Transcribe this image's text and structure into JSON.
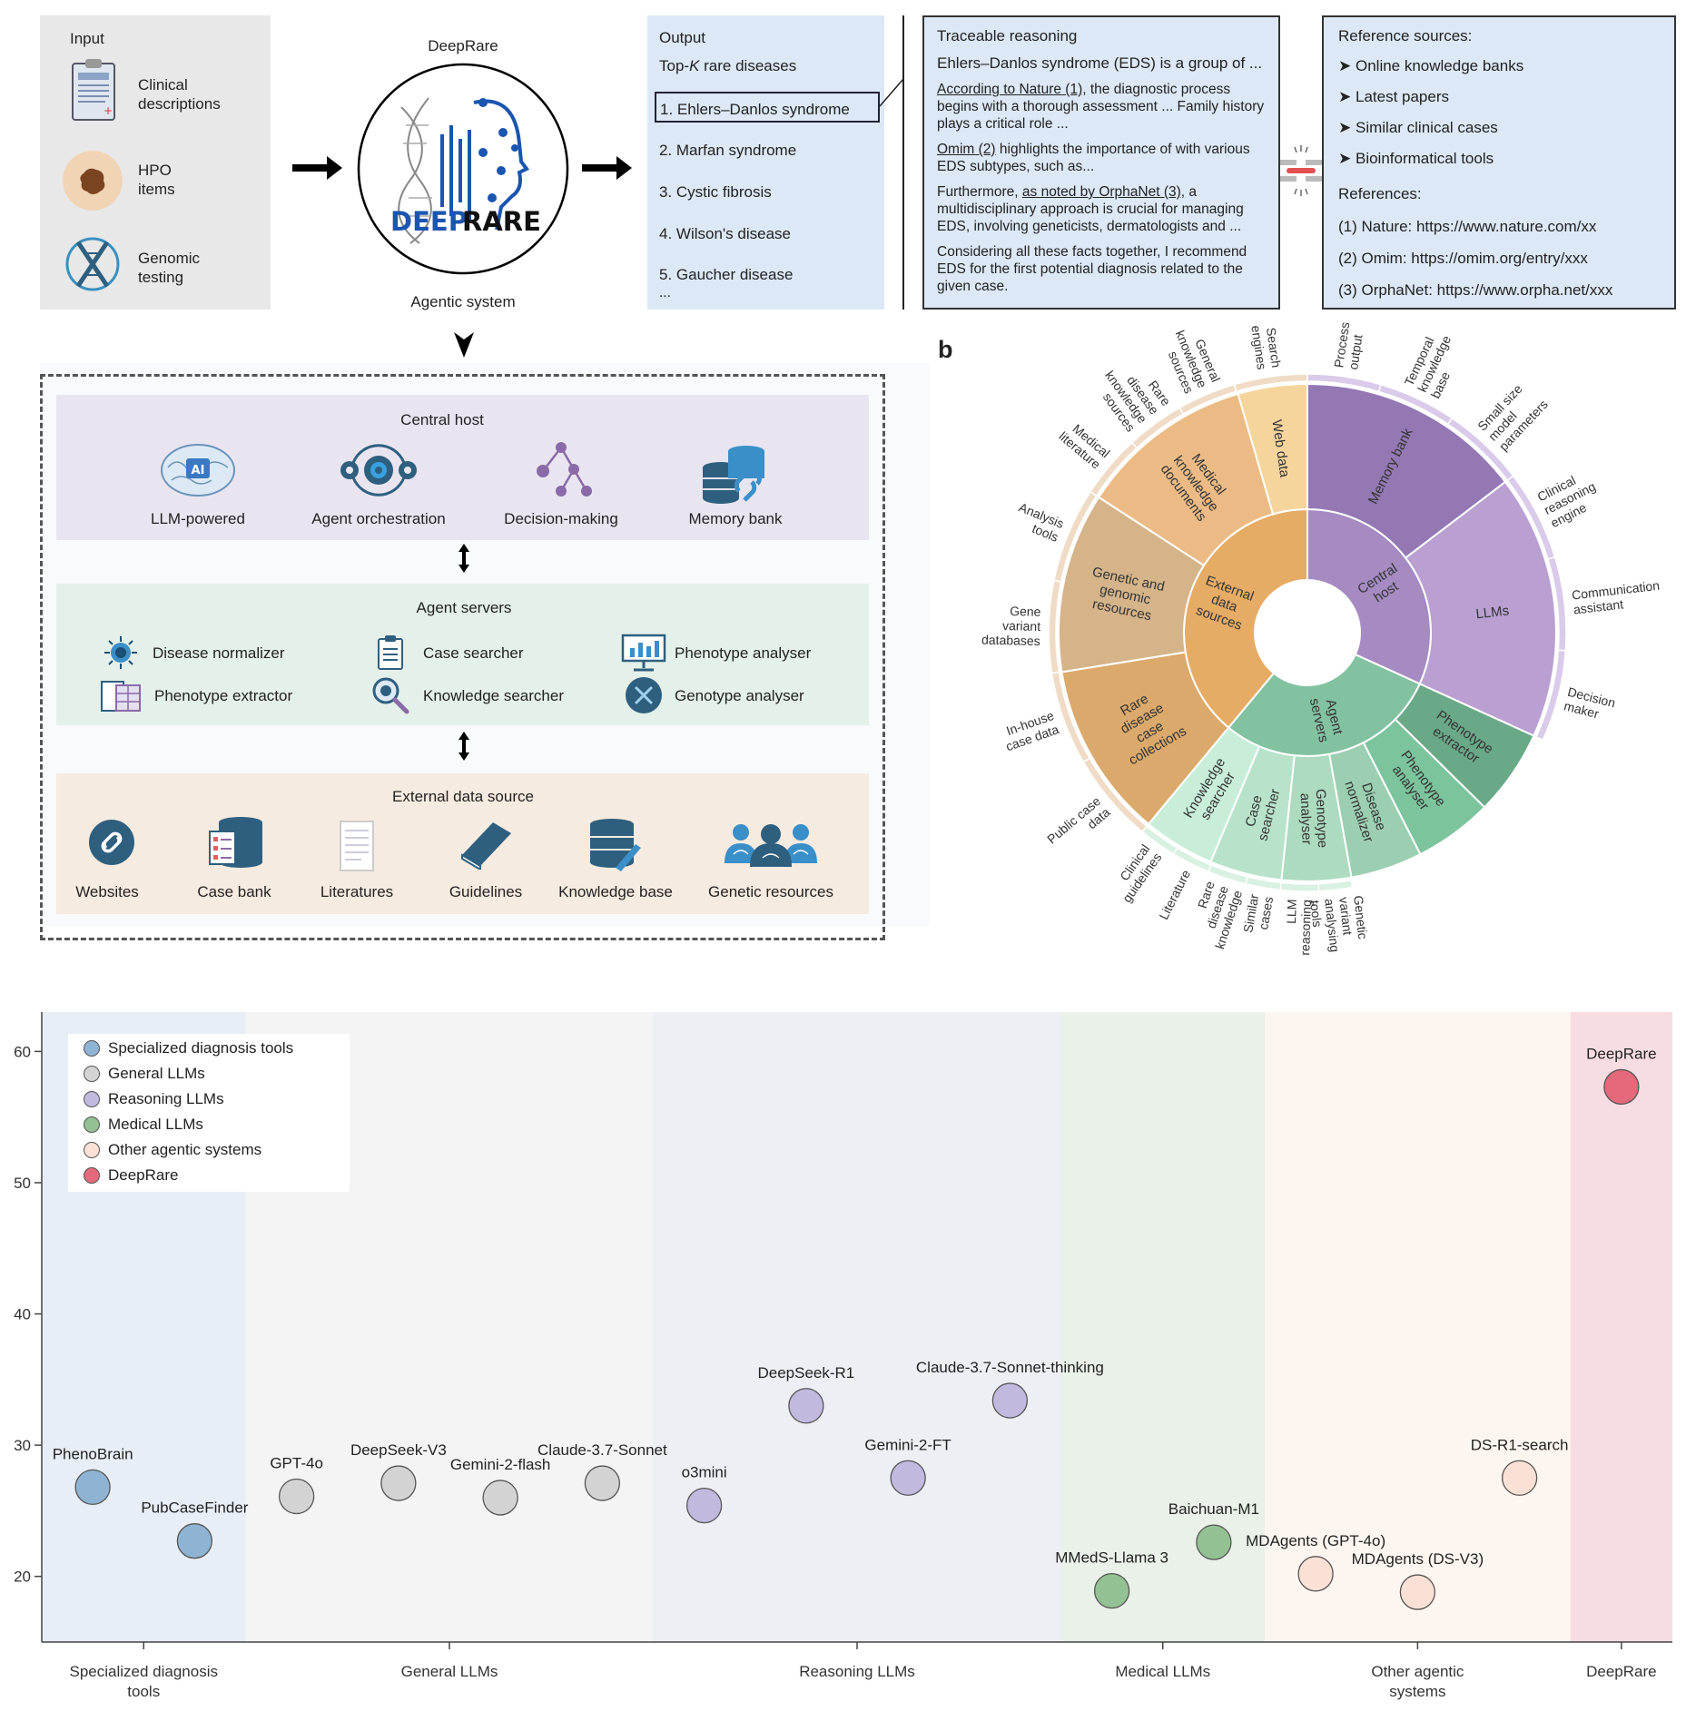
{
  "panel_a": {
    "input": {
      "title": "Input",
      "items": [
        {
          "label_1": "Clinical",
          "label_2": "descriptions",
          "icon": "clipboard-icon"
        },
        {
          "label_1": "HPO",
          "label_2": "items",
          "icon": "skin-lesion-icon"
        },
        {
          "label_1": "Genomic",
          "label_2": "testing",
          "icon": "dna-icon"
        }
      ]
    },
    "agent": {
      "title": "DeepRare",
      "logo_text_1": "DEEP",
      "logo_text_2": "RARE",
      "subtitle": "Agentic system"
    },
    "output": {
      "title": "Output",
      "subtitle_prefix": "Top-",
      "subtitle_k": "K",
      "subtitle_suffix": " rare diseases",
      "items": [
        "1. Ehlers–Danlos syndrome",
        "2. Marfan syndrome",
        "3. Cystic fibrosis",
        "4. Wilson's disease",
        "5. Gaucher disease"
      ],
      "ellipsis": "..."
    },
    "reasoning": {
      "title": "Traceable reasoning",
      "intro": "Ehlers–Danlos syndrome (EDS) is a group of ...",
      "p1_link": "According to Nature (1),",
      "p1_rest": " the diagnostic process begins with a thorough assessment ... Family history plays a critical role ...",
      "p2_link": "Omim (2)",
      "p2_rest": " highlights the importance of with various EDS subtypes, such as...",
      "p3_pre": "Furthermore, ",
      "p3_link": "as noted by OrphaNet (3),",
      "p3_rest": " a multidisciplinary approach is crucial for managing EDS, involving geneticists, dermatologists and ...",
      "p4": "Considering all these facts together, I recommend EDS for the first potential diagnosis related to the given case."
    },
    "references": {
      "title": "Reference sources:",
      "sources": [
        "Online knowledge banks",
        "Latest papers",
        "Similar clinical cases",
        "Bioinformatical tools"
      ],
      "refs_title": "References:",
      "refs": [
        "(1) Nature: https://www.nature.com/xx",
        "(2) Omim: https://omim.org/entry/xxx",
        "(3) OrphaNet: https://www.orpha.net/xxx"
      ]
    },
    "architecture": {
      "central_host": {
        "title": "Central host",
        "items": [
          "LLM-powered",
          "Agent orchestration",
          "Decision-making",
          "Memory bank"
        ],
        "ai_badge": "AI"
      },
      "agent_servers": {
        "title": "Agent servers",
        "items": [
          "Disease normalizer",
          "Case searcher",
          "Phenotype analyser",
          "Phenotype extractor",
          "Knowledge searcher",
          "Genotype analyser"
        ]
      },
      "external": {
        "title": "External data source",
        "items": [
          "Websites",
          "Case bank",
          "Literatures",
          "Guidelines",
          "Knowledge base",
          "Genetic resources"
        ]
      }
    },
    "colors": {
      "input_bg": "#e8e8e8",
      "output_bg": "#dce8f5",
      "central_bg": "#e8e5f1",
      "agent_bg": "#e4f0ea",
      "external_bg": "#f6ebe0",
      "accent_blue": "#2f5f7f"
    }
  },
  "panel_b": {
    "label": "b",
    "sunburst": {
      "groups": [
        {
          "name": "Central host",
          "value": 114.5,
          "color": "#a58bc2",
          "children": [
            {
              "name": "Memory bank",
              "value": 52.7,
              "color": "#9478b3"
            },
            {
              "name": "LLMs",
              "value": 61.8,
              "color": "#b9a0d1"
            }
          ],
          "outer": [
            {
              "name": "Process output",
              "value": 16.5
            },
            {
              "name": "Temporal knowledge base",
              "value": 17.5
            },
            {
              "name": "Small size model parameters",
              "value": 18.7
            },
            {
              "name": "Clinical reasoning engine",
              "value": 20.3
            },
            {
              "name": "Communication assistant",
              "value": 21.0
            },
            {
              "name": "Decision maker",
              "value": 20.5
            }
          ],
          "outer_color": "#d9cbe9"
        },
        {
          "name": "Agent servers",
          "value": 105.2,
          "color": "#83c2a1",
          "children": [
            {
              "name": "Phenotype extractor",
              "value": 20.1,
              "color": "#6aa988"
            },
            {
              "name": "Phenotype analyser",
              "value": 18.4,
              "color": "#7cc49c"
            },
            {
              "name": "Disease normalizer",
              "value": 16.8,
              "color": "#9ccfb1"
            },
            {
              "name": "Genotype analyser",
              "value": 16.2,
              "color": "#acdbbf"
            },
            {
              "name": "Case searcher",
              "value": 16.9,
              "color": "#b8e3ca"
            },
            {
              "name": "Knowledge searcher",
              "value": 16.8,
              "color": "#c8eed9"
            }
          ],
          "outer": [
            {
              "name": "",
              "value": 55.5
            },
            {
              "name": "Genetic variant analysing tools",
              "value": 7.5
            },
            {
              "name": "LLM reasoning",
              "value": 8.5
            },
            {
              "name": "Similar cases",
              "value": 7.8
            },
            {
              "name": "Rare disease knowledge",
              "value": 8.7
            },
            {
              "name": "Literature",
              "value": 8.7
            },
            {
              "name": "Clinical guidelines",
              "value": 8.5
            }
          ],
          "outer_color": "#d8f1e2"
        },
        {
          "name": "External data sources",
          "value": 140.3,
          "color": "#e6ac66",
          "children": [
            {
              "name": "Rare disease case collections",
              "value": 41.2,
              "color": "#dba96c"
            },
            {
              "name": "Genetic and genomic resources",
              "value": 42.1,
              "color": "#d5b48a"
            },
            {
              "name": "Medical knowledge documents",
              "value": 40.8,
              "color": "#ecbb85"
            },
            {
              "name": "Web data",
              "value": 16.2,
              "color": "#f6d59d"
            }
          ],
          "outer": [
            {
              "name": "Public case data",
              "value": 20.3
            },
            {
              "name": "In-house case data",
              "value": 21.0
            },
            {
              "name": "Gene variant databases",
              "value": 20.7
            },
            {
              "name": "Analysis tools",
              "value": 21.3
            },
            {
              "name": "Medical literature",
              "value": 14.3
            },
            {
              "name": "Rare disease knowledge sources",
              "value": 13.1
            },
            {
              "name": "General knowledge sources",
              "value": 13.2
            },
            {
              "name": "Search engines",
              "value": 16.4
            }
          ],
          "outer_color": "#f0dcc6"
        }
      ]
    }
  },
  "chart_data": {
    "type": "scatter",
    "title": "",
    "xlabel": "",
    "ylabel": "",
    "ylim": [
      15,
      63
    ],
    "yticks": [
      20,
      30,
      40,
      50,
      60
    ],
    "grid": false,
    "legend_position": "top-left",
    "categories": [
      {
        "name": "Specialized diagnosis tools",
        "label_lines": [
          "Specialized diagnosis",
          "tools"
        ],
        "color": "#8fb3d3",
        "band": "#e8eef6"
      },
      {
        "name": "General LLMs",
        "label_lines": [
          "General LLMs"
        ],
        "color": "#d3d3d3",
        "band": "#f4f4f4"
      },
      {
        "name": "Reasoning LLMs",
        "label_lines": [
          "Reasoning LLMs"
        ],
        "color": "#c1b9de",
        "band": "#eeeff5"
      },
      {
        "name": "Medical LLMs",
        "label_lines": [
          "Medical LLMs"
        ],
        "color": "#93c193",
        "band": "#e9f1e8"
      },
      {
        "name": "Other agentic systems",
        "label_lines": [
          "Other agentic",
          "systems"
        ],
        "color": "#fbe1d5",
        "band": "#fdf6f0"
      },
      {
        "name": "DeepRare",
        "label_lines": [
          "DeepRare"
        ],
        "color": "#e4697a",
        "band": "#f7dde2"
      }
    ],
    "points": [
      {
        "name": "PhenoBrain",
        "category": 0,
        "y": 26.8
      },
      {
        "name": "PubCaseFinder",
        "category": 0,
        "y": 22.7
      },
      {
        "name": "GPT-4o",
        "category": 1,
        "y": 26.1
      },
      {
        "name": "DeepSeek-V3",
        "category": 1,
        "y": 27.1
      },
      {
        "name": "Gemini-2-flash",
        "category": 1,
        "y": 26.0
      },
      {
        "name": "Claude-3.7-Sonnet",
        "category": 1,
        "y": 27.1
      },
      {
        "name": "o3mini",
        "category": 2,
        "y": 25.4
      },
      {
        "name": "DeepSeek-R1",
        "category": 2,
        "y": 33.0
      },
      {
        "name": "Gemini-2-FT",
        "category": 2,
        "y": 27.5
      },
      {
        "name": "Claude-3.7-Sonnet-thinking",
        "category": 2,
        "y": 33.4
      },
      {
        "name": "MMedS-Llama 3",
        "category": 3,
        "y": 18.9
      },
      {
        "name": "Baichuan-M1",
        "category": 3,
        "y": 22.6
      },
      {
        "name": "MDAgents (GPT-4o)",
        "category": 4,
        "y": 20.2
      },
      {
        "name": "MDAgents (DS-V3)",
        "category": 4,
        "y": 18.8
      },
      {
        "name": "DS-R1-search",
        "category": 4,
        "y": 27.5
      },
      {
        "name": "DeepRare",
        "category": 5,
        "y": 57.3
      }
    ]
  }
}
